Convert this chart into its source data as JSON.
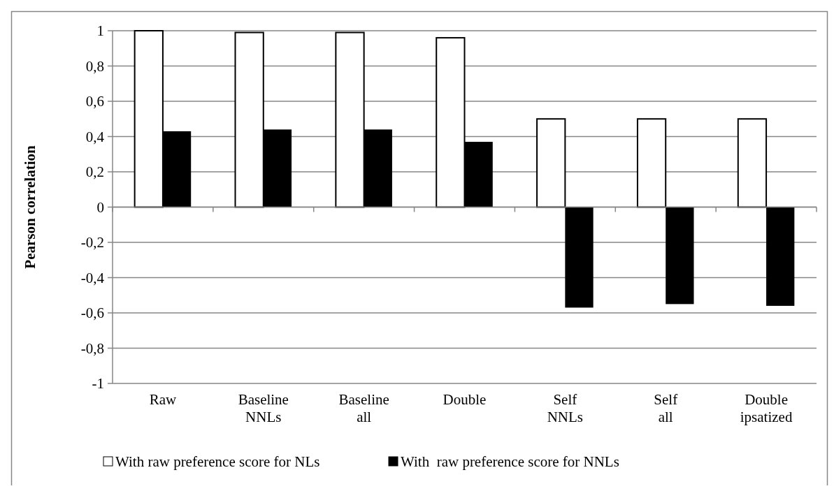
{
  "chart_data": {
    "type": "bar",
    "ylabel": "Pearson correlation",
    "categories": [
      "Raw",
      "Baseline NNLs",
      "Baseline all",
      "Double",
      "Self NNLs",
      "Self all",
      "Double ipsatized"
    ],
    "series": [
      {
        "name": "With raw preference score for NLs",
        "color": "#ffffff",
        "values": [
          1.0,
          0.99,
          0.99,
          0.96,
          0.5,
          0.5,
          0.5
        ]
      },
      {
        "name": "With  raw preference score for NNLs",
        "color": "#000000",
        "values": [
          0.43,
          0.44,
          0.44,
          0.37,
          -0.57,
          -0.55,
          -0.56
        ]
      }
    ],
    "ylim": [
      -1,
      1
    ],
    "yticks": [
      {
        "value": -1,
        "label": "-1"
      },
      {
        "value": -0.8,
        "label": "-0,8"
      },
      {
        "value": -0.6,
        "label": "-0,6"
      },
      {
        "value": -0.4,
        "label": "-0,4"
      },
      {
        "value": -0.2,
        "label": "-0,2"
      },
      {
        "value": 0,
        "label": "0"
      },
      {
        "value": 0.2,
        "label": "0,2"
      },
      {
        "value": 0.4,
        "label": "0,4"
      },
      {
        "value": 0.6,
        "label": "0,6"
      },
      {
        "value": 0.8,
        "label": "0,8"
      },
      {
        "value": 1,
        "label": "1"
      }
    ],
    "grid": "y",
    "legend": "bottom"
  }
}
